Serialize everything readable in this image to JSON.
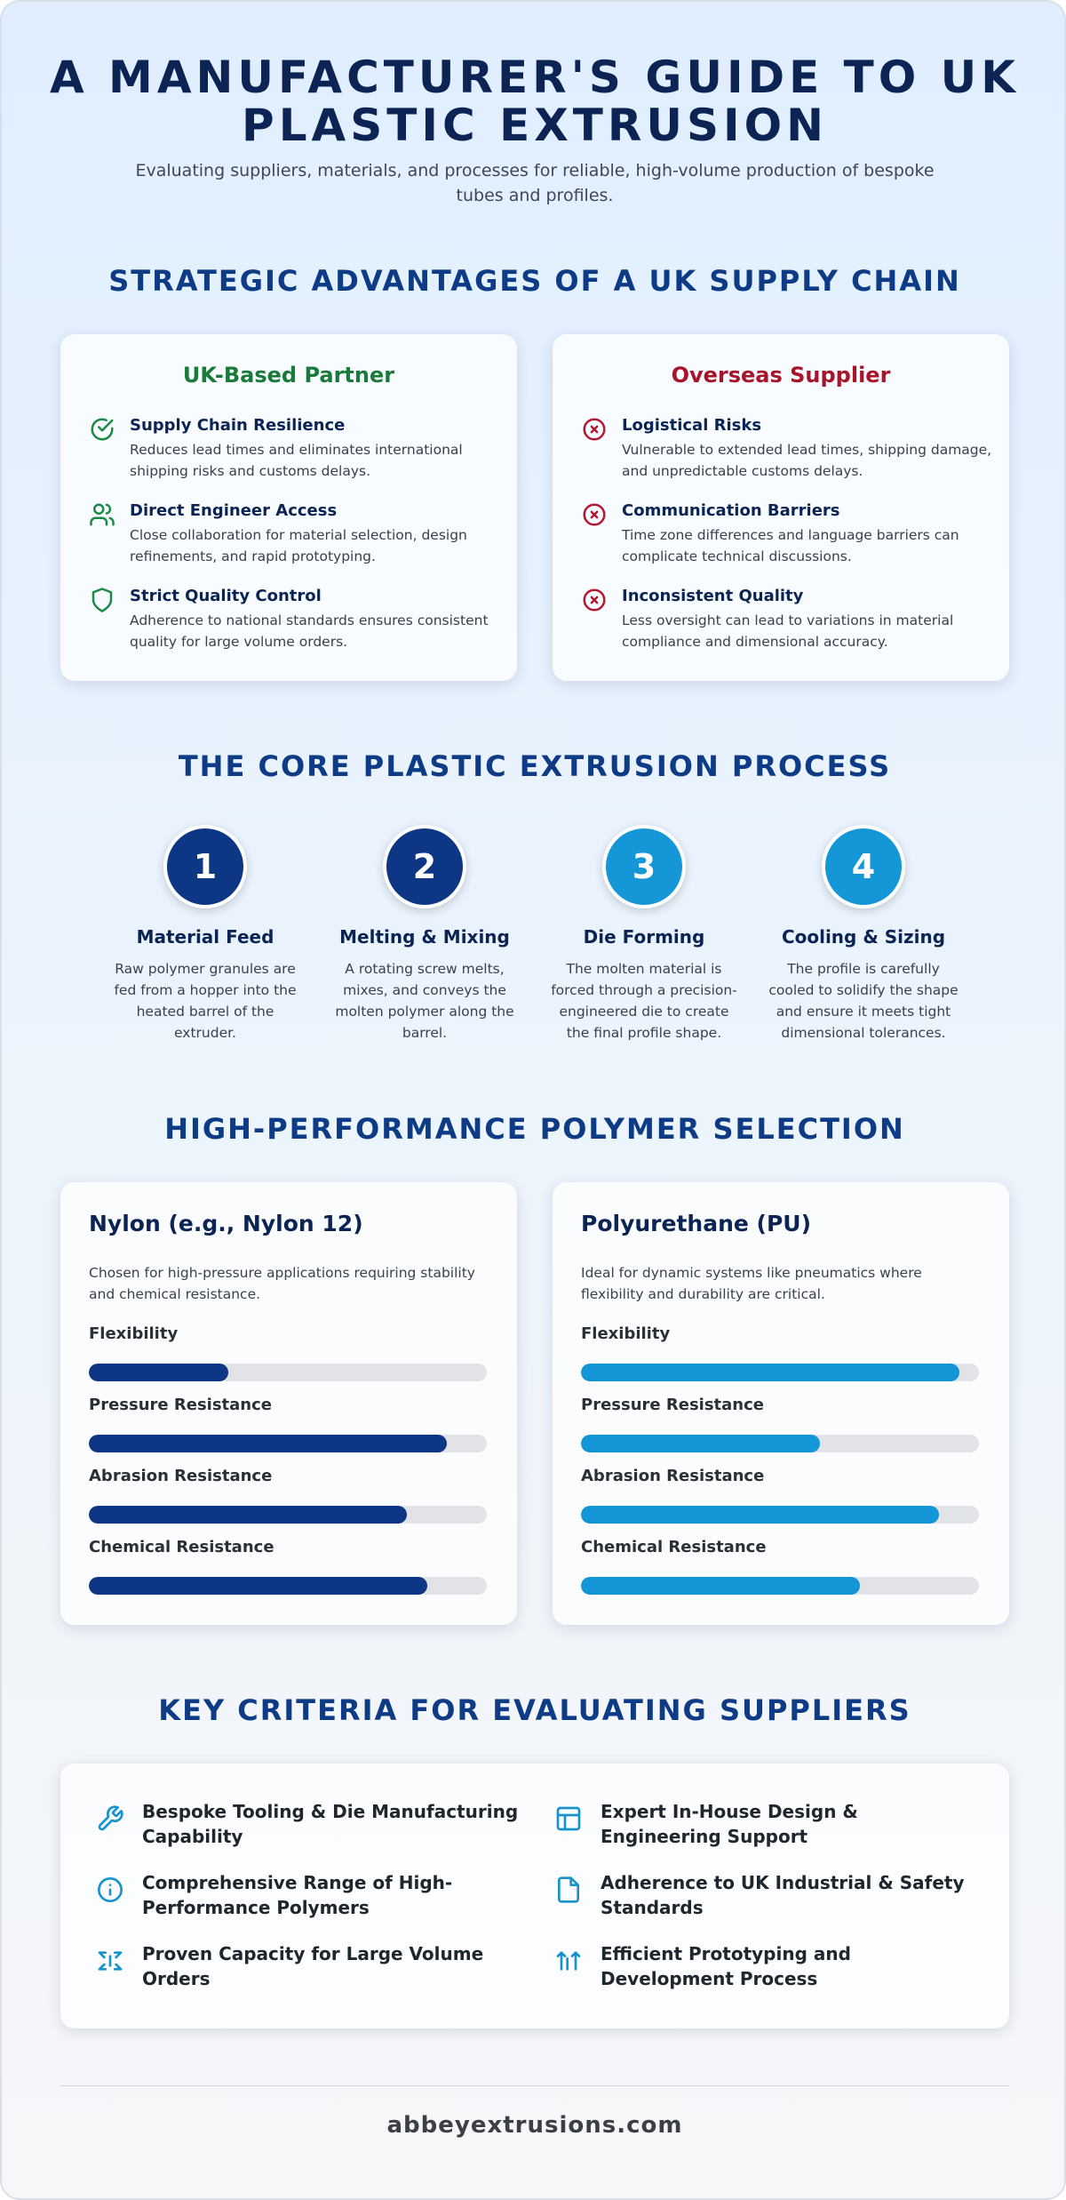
{
  "header": {
    "title": "A MANUFACTURER'S GUIDE TO UK PLASTIC EXTRUSION",
    "subtitle": "Evaluating suppliers, materials, and processes for reliable, high-volume production of bespoke tubes and profiles."
  },
  "advantages": {
    "section_title": "STRATEGIC ADVANTAGES OF A UK SUPPLY CHAIN",
    "uk": {
      "heading": "UK-Based Partner",
      "color": "#1a7a3a",
      "items": [
        {
          "icon": "check-circle-icon",
          "title": "Supply Chain Resilience",
          "desc": "Reduces lead times and eliminates international shipping risks and customs delays."
        },
        {
          "icon": "users-icon",
          "title": "Direct Engineer Access",
          "desc": "Close collaboration for material selection, design refinements, and rapid prototyping."
        },
        {
          "icon": "shield-icon",
          "title": "Strict Quality Control",
          "desc": "Adherence to national standards ensures consistent quality for large volume orders."
        }
      ]
    },
    "overseas": {
      "heading": "Overseas Supplier",
      "color": "#a8142a",
      "items": [
        {
          "icon": "x-circle-icon",
          "title": "Logistical Risks",
          "desc": "Vulnerable to extended lead times, shipping damage, and unpredictable customs delays."
        },
        {
          "icon": "x-circle-icon",
          "title": "Communication Barriers",
          "desc": "Time zone differences and language barriers can complicate technical discussions."
        },
        {
          "icon": "x-circle-icon",
          "title": "Inconsistent Quality",
          "desc": "Less oversight can lead to variations in material compliance and dimensional accuracy."
        }
      ]
    }
  },
  "process": {
    "section_title": "THE CORE PLASTIC EXTRUSION PROCESS",
    "steps": [
      {
        "number": "1",
        "title": "Material Feed",
        "desc": "Raw polymer granules are fed from a hopper into the heated barrel of the extruder.",
        "color": "#0d3784"
      },
      {
        "number": "2",
        "title": "Melting & Mixing",
        "desc": "A rotating screw melts, mixes, and conveys the molten polymer along the barrel.",
        "color": "#0d3784"
      },
      {
        "number": "3",
        "title": "Die Forming",
        "desc": "The molten material is forced through a precision-engineered die to create the final profile shape.",
        "color": "#1596d6"
      },
      {
        "number": "4",
        "title": "Cooling & Sizing",
        "desc": "The profile is carefully cooled to solidify the shape and ensure it meets tight dimensional tolerances.",
        "color": "#1596d6"
      }
    ]
  },
  "polymers": {
    "section_title": "HIGH-PERFORMANCE POLYMER SELECTION",
    "cards": [
      {
        "title": "Nylon (e.g., Nylon 12)",
        "desc": "Chosen for high-pressure applications requiring stability and chemical resistance.",
        "color": "#0d3784",
        "properties": [
          {
            "label": "Flexibility",
            "value": 35
          },
          {
            "label": "Pressure Resistance",
            "value": 90
          },
          {
            "label": "Abrasion Resistance",
            "value": 80
          },
          {
            "label": "Chemical Resistance",
            "value": 85
          }
        ]
      },
      {
        "title": "Polyurethane (PU)",
        "desc": "Ideal for dynamic systems like pneumatics where flexibility and durability are critical.",
        "color": "#1596d6",
        "properties": [
          {
            "label": "Flexibility",
            "value": 95
          },
          {
            "label": "Pressure Resistance",
            "value": 60
          },
          {
            "label": "Abrasion Resistance",
            "value": 90
          },
          {
            "label": "Chemical Resistance",
            "value": 70
          }
        ]
      }
    ]
  },
  "criteria": {
    "section_title": "KEY CRITERIA FOR EVALUATING SUPPLIERS",
    "items": [
      {
        "icon": "wrench-icon",
        "text": "Bespoke Tooling & Die Manufacturing Capability"
      },
      {
        "icon": "layout-icon",
        "text": "Expert In-House Design & Engineering Support"
      },
      {
        "icon": "info-icon",
        "text": "Comprehensive Range of High-Performance Polymers"
      },
      {
        "icon": "file-icon",
        "text": "Adherence to UK Industrial & Safety Standards"
      },
      {
        "icon": "scale-icon",
        "text": "Proven Capacity for Large Volume Orders"
      },
      {
        "icon": "arrows-up-icon",
        "text": "Efficient Prototyping and Development Process"
      }
    ]
  },
  "footer": {
    "text": "abbeyextrusions.com"
  }
}
